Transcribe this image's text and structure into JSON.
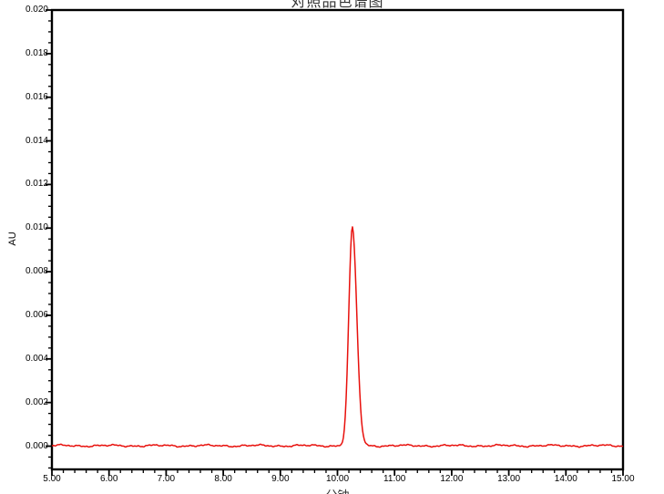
{
  "window": {
    "title_text": "对照品色谱图",
    "title_clipped": "top edge of image cuts off title; only bottom stroke fragments visible"
  },
  "chart_data": {
    "type": "line",
    "title": "对照品色谱图",
    "xlabel": "分钟",
    "ylabel": "AU",
    "xlim": [
      5.0,
      15.0
    ],
    "ylim": [
      -0.00107,
      0.02
    ],
    "grid": false,
    "legend": false,
    "x_major_tick_interval": 1.0,
    "x_minor_tick_interval": 0.2,
    "y_major_tick_interval": 0.002,
    "y_minor_tick_interval": 0.0005,
    "x_tick_labels": [
      "5.00",
      "6.00",
      "7.00",
      "8.00",
      "9.00",
      "10.00",
      "11.00",
      "12.00",
      "13.00",
      "14.00",
      "15.00"
    ],
    "y_tick_labels": [
      "0.020",
      "0.018",
      "0.016",
      "0.014",
      "0.012",
      "0.010",
      "0.008",
      "0.006",
      "0.004",
      "0.002",
      "0.000"
    ],
    "axis_color": "#000000",
    "background_color": "#ffffff",
    "series": [
      {
        "name": "chromatogram-trace",
        "color": "#e8100c",
        "baseline_au": 2e-05,
        "noise_amplitude_au": 6e-05,
        "peaks": [
          {
            "retention_time_min": 10.26,
            "height_au": 0.01,
            "sigma_left_min": 0.062,
            "sigma_right_min": 0.078,
            "apex_point": [
              10.26,
              0.01
            ],
            "baseline_start_min": 9.9,
            "baseline_end_min": 10.62
          }
        ]
      }
    ]
  }
}
